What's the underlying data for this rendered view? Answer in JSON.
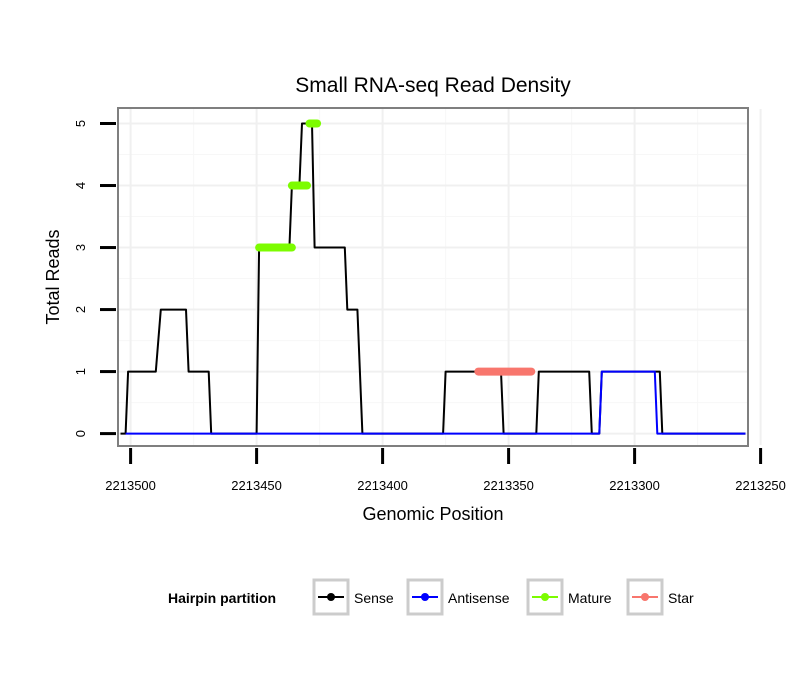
{
  "chart_data": {
    "type": "line",
    "title": "Small RNA-seq Read Density",
    "xlabel": "Genomic Position",
    "ylabel": "Total Reads",
    "xlim": [
      2213505,
      2213255
    ],
    "ylim": [
      -0.2,
      5.25
    ],
    "x_ticks": [
      2213500,
      2213450,
      2213400,
      2213350,
      2213300,
      2213250
    ],
    "x_tick_labels": [
      "2213500",
      "2213450",
      "2213400",
      "2213350",
      "2213300",
      "2213250"
    ],
    "y_ticks": [
      0,
      1,
      2,
      3,
      4,
      5
    ],
    "y_tick_labels": [
      "0",
      "1",
      "2",
      "3",
      "4",
      "5"
    ],
    "grid": true,
    "legend_position": "bottom",
    "legend_title": "Hairpin partition",
    "series": [
      {
        "name": "Sense",
        "color": "#000000",
        "x": [
          2213504,
          2213502,
          2213501,
          2213490,
          2213488,
          2213478,
          2213477,
          2213469,
          2213468,
          2213450,
          2213449,
          2213437,
          2213436,
          2213433,
          2213432,
          2213428,
          2213427,
          2213415,
          2213414,
          2213410,
          2213409,
          2213408,
          2213407,
          2213400,
          2213376,
          2213375,
          2213365,
          2213353,
          2213352,
          2213339,
          2213338,
          2213318,
          2213317,
          2213314,
          2213313,
          2213303,
          2213290,
          2213289,
          2213256
        ],
        "y": [
          0,
          0,
          1,
          1,
          2,
          2,
          1,
          1,
          0,
          0,
          3,
          3,
          4,
          4,
          5,
          5,
          3,
          3,
          2,
          2,
          1,
          0,
          0,
          0,
          0,
          1,
          1,
          1,
          0,
          0,
          1,
          1,
          0,
          0,
          1,
          1,
          1,
          0,
          0
        ]
      },
      {
        "name": "Antisense",
        "color": "#0000ff",
        "x": [
          2213502,
          2213314,
          2213313,
          2213292,
          2213291,
          2213256
        ],
        "y": [
          0,
          0,
          1,
          1,
          0,
          0
        ]
      }
    ],
    "mature_segments": [
      {
        "x": [
          2213449,
          2213436
        ],
        "y": 3
      },
      {
        "x": [
          2213436,
          2213430
        ],
        "y": 4
      },
      {
        "x": [
          2213429,
          2213426
        ],
        "y": 5
      }
    ],
    "star_segments": [
      {
        "x": [
          2213362,
          2213341
        ],
        "y": 1
      }
    ],
    "legend": [
      {
        "label": "Sense",
        "color": "#000000"
      },
      {
        "label": "Antisense",
        "color": "#0000ff"
      },
      {
        "label": "Mature",
        "color": "#7cfc00"
      },
      {
        "label": "Star",
        "color": "#f8766d"
      }
    ]
  }
}
